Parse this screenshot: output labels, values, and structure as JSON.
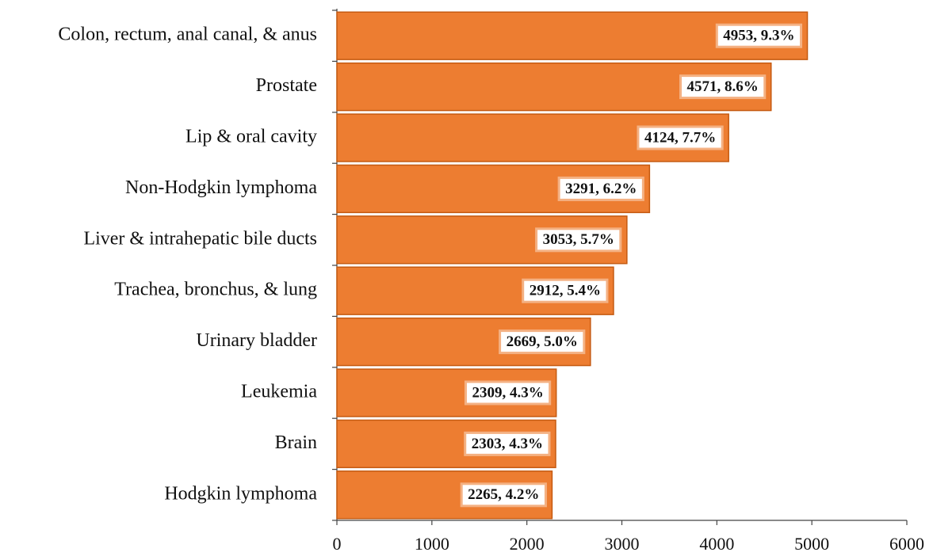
{
  "chart_data": {
    "type": "barh",
    "categories": [
      "Colon, rectum, anal canal, & anus",
      "Prostate",
      "Lip & oral cavity",
      "Non-Hodgkin lymphoma",
      "Liver & intrahepatic bile ducts",
      "Trachea, bronchus, & lung",
      "Urinary bladder",
      "Leukemia",
      "Brain",
      "Hodgkin lymphoma"
    ],
    "values": [
      4953,
      4571,
      4124,
      3291,
      3053,
      2912,
      2669,
      2309,
      2303,
      2265
    ],
    "value_labels": [
      "4953, 9.3%",
      "4571, 8.6%",
      "4124, 7.7%",
      "3291, 6.2%",
      "3053, 5.7%",
      "2912, 5.4%",
      "2669, 5.0%",
      "2309, 4.3%",
      "2303, 4.3%",
      "2265, 4.2%"
    ],
    "color": "#ed7d31",
    "xlim": [
      0,
      6000
    ],
    "xticks": [
      0,
      1000,
      2000,
      3000,
      4000,
      5000,
      6000
    ],
    "grid": false
  }
}
